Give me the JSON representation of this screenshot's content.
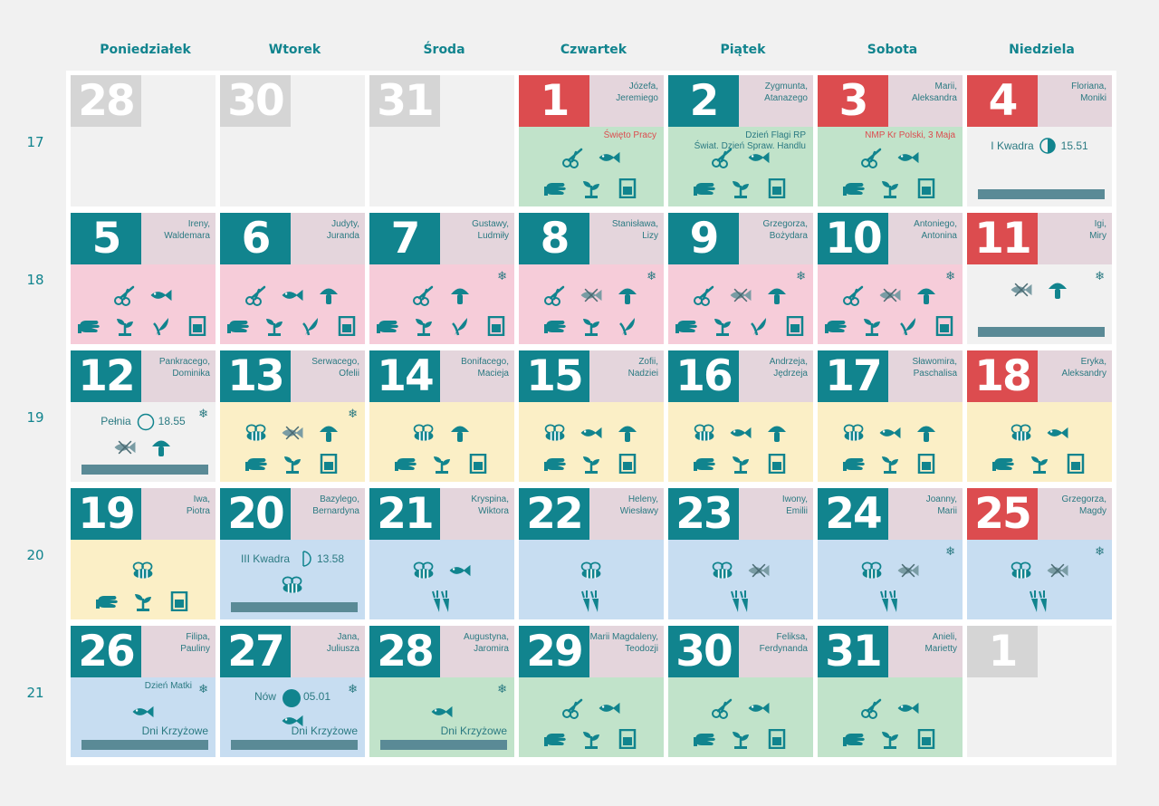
{
  "weekdays": [
    "Poniedziałek",
    "Wtorek",
    "Środa",
    "Czwartek",
    "Piątek",
    "Sobota",
    "Niedziela"
  ],
  "weeks": [
    "17",
    "18",
    "19",
    "20",
    "21"
  ],
  "colors": {
    "teal": "#11848e",
    "red": "#dc4c4f",
    "grey": "#d5d5d5",
    "green": "#c1e3ca",
    "pink": "#f6ccd9",
    "yellow": "#fbefc6",
    "blue": "#c7ddf1"
  },
  "cells": [
    {
      "day": "28",
      "kind": "oth",
      "empty": true
    },
    {
      "day": "30",
      "kind": "oth",
      "empty": true
    },
    {
      "day": "31",
      "kind": "oth",
      "empty": true
    },
    {
      "day": "1",
      "kind": "hol",
      "n1": "Józefa,",
      "n2": "Jeremiego",
      "bg": "green",
      "event": "Święto Pracy",
      "event_red": true,
      "r1": [
        "scissors",
        "fish"
      ],
      "r2": [
        "glove",
        "sprout",
        "jar"
      ]
    },
    {
      "day": "2",
      "kind": "std",
      "n1": "Zygmunta,",
      "n2": "Atanazego",
      "bg": "green",
      "event": "Dzień Flagi RP",
      "event2": "Świat. Dzień Spraw. Handlu",
      "r1": [
        "scissors",
        "fish"
      ],
      "r2": [
        "glove",
        "sprout",
        "jar"
      ]
    },
    {
      "day": "3",
      "kind": "hol",
      "n1": "Marii,",
      "n2": "Aleksandra",
      "bg": "green",
      "event": "NMP Kr Polski, 3 Maja",
      "event_red": true,
      "r1": [
        "scissors",
        "fish"
      ],
      "r2": [
        "glove",
        "sprout",
        "jar"
      ]
    },
    {
      "day": "4",
      "kind": "hol",
      "n1": "Floriana,",
      "n2": "Moniki",
      "bg": "grey",
      "moon": "I Kwadra",
      "moon_time": "15.51",
      "moon_shape": "first",
      "bar": true
    },
    {
      "day": "5",
      "kind": "std",
      "n1": "Ireny,",
      "n2": "Waldemara",
      "bg": "pink",
      "r1": [
        "scissors",
        "fish"
      ],
      "r2": [
        "glove",
        "sprout",
        "leaf",
        "jar"
      ]
    },
    {
      "day": "6",
      "kind": "std",
      "n1": "Judyty,",
      "n2": "Juranda",
      "bg": "pink",
      "r1": [
        "scissors",
        "fish",
        "mushroom"
      ],
      "r2": [
        "glove",
        "sprout",
        "leaf",
        "jar"
      ]
    },
    {
      "day": "7",
      "kind": "std",
      "n1": "Gustawy,",
      "n2": "Ludmiły",
      "bg": "pink",
      "flake": "❄",
      "r1": [
        "scissors",
        "mushroom"
      ],
      "r2": [
        "glove",
        "sprout",
        "leaf",
        "jar"
      ]
    },
    {
      "day": "8",
      "kind": "std",
      "n1": "Stanisława,",
      "n2": "Lizy",
      "bg": "pink",
      "flake": "❄",
      "r1": [
        "scissors",
        "fishx",
        "mushroom"
      ],
      "r2": [
        "glove",
        "sprout",
        "leaf"
      ]
    },
    {
      "day": "9",
      "kind": "std",
      "n1": "Grzegorza,",
      "n2": "Bożydara",
      "bg": "pink",
      "flake": "❄",
      "r1": [
        "scissors",
        "fishx",
        "mushroom"
      ],
      "r2": [
        "glove",
        "sprout",
        "leaf",
        "jar"
      ]
    },
    {
      "day": "10",
      "kind": "std",
      "n1": "Antoniego,",
      "n2": "Antonina",
      "bg": "pink",
      "flake": "❄",
      "r1": [
        "scissors",
        "fishx",
        "mushroom"
      ],
      "r2": [
        "glove",
        "sprout",
        "leaf",
        "jar"
      ]
    },
    {
      "day": "11",
      "kind": "hol",
      "n1": "Igi,",
      "n2": "Miry",
      "bg": "grey",
      "flake": "❄",
      "r1": [
        "fishx",
        "mushroom"
      ],
      "bar": true
    },
    {
      "day": "12",
      "kind": "std",
      "n1": "Pankracego,",
      "n2": "Dominika",
      "bg": "grey",
      "flake": "❄",
      "moon": "Pełnia",
      "moon_time": "18.55",
      "moon_shape": "full",
      "r2": [
        "fishx",
        "mushroom"
      ],
      "bar": true
    },
    {
      "day": "13",
      "kind": "std",
      "n1": "Serwacego,",
      "n2": "Ofelii",
      "bg": "yellow",
      "flake": "❄",
      "r1": [
        "bee",
        "fishx",
        "mushroom"
      ],
      "r2": [
        "glove",
        "sprout",
        "jar"
      ]
    },
    {
      "day": "14",
      "kind": "std",
      "n1": "Bonifacego,",
      "n2": "Macieja",
      "bg": "yellow",
      "r1": [
        "bee",
        "mushroom"
      ],
      "r2": [
        "glove",
        "sprout",
        "jar"
      ]
    },
    {
      "day": "15",
      "kind": "std",
      "n1": "Zofii,",
      "n2": "Nadziei",
      "bg": "yellow",
      "r1": [
        "bee",
        "fish",
        "mushroom"
      ],
      "r2": [
        "glove",
        "sprout",
        "jar"
      ]
    },
    {
      "day": "16",
      "kind": "std",
      "n1": "Andrzeja,",
      "n2": "Jędrzeja",
      "bg": "yellow",
      "r1": [
        "bee",
        "fish",
        "mushroom"
      ],
      "r2": [
        "glove",
        "sprout",
        "jar"
      ]
    },
    {
      "day": "17",
      "kind": "std",
      "n1": "Sławomira,",
      "n2": "Paschalisa",
      "bg": "yellow",
      "r1": [
        "bee",
        "fish",
        "mushroom"
      ],
      "r2": [
        "glove",
        "sprout",
        "jar"
      ]
    },
    {
      "day": "18",
      "kind": "hol",
      "n1": "Eryka,",
      "n2": "Aleksandry",
      "bg": "yellow",
      "r1": [
        "bee",
        "fish"
      ],
      "r2": [
        "glove",
        "sprout",
        "jar"
      ]
    },
    {
      "day": "19",
      "kind": "std",
      "n1": "Iwa,",
      "n2": "Piotra",
      "bg": "yellow",
      "r1": [
        "bee"
      ],
      "r2": [
        "glove",
        "sprout",
        "jar"
      ]
    },
    {
      "day": "20",
      "kind": "std",
      "n1": "Bazylego,",
      "n2": "Bernardyna",
      "bg": "blue",
      "moon": "III Kwadra",
      "moon_time": "13.58",
      "moon_shape": "last",
      "r2": [
        "bee"
      ],
      "bar": true
    },
    {
      "day": "21",
      "kind": "std",
      "n1": "Kryspina,",
      "n2": "Wiktora",
      "bg": "blue",
      "r1": [
        "bee",
        "fish"
      ],
      "r2": [
        "carrot"
      ]
    },
    {
      "day": "22",
      "kind": "std",
      "n1": "Heleny,",
      "n2": "Wiesławy",
      "bg": "blue",
      "r1": [
        "bee"
      ],
      "r2": [
        "carrot"
      ]
    },
    {
      "day": "23",
      "kind": "std",
      "n1": "Iwony,",
      "n2": "Emilii",
      "bg": "blue",
      "r1": [
        "bee",
        "fishx"
      ],
      "r2": [
        "carrot"
      ]
    },
    {
      "day": "24",
      "kind": "std",
      "n1": "Joanny,",
      "n2": "Marii",
      "bg": "blue",
      "flake": "❄",
      "r1": [
        "bee",
        "fishx"
      ],
      "r2": [
        "carrot"
      ]
    },
    {
      "day": "25",
      "kind": "hol",
      "n1": "Grzegorza,",
      "n2": "Magdy",
      "bg": "blue",
      "flake": "❄",
      "r1": [
        "bee",
        "fishx"
      ],
      "r2": [
        "carrot"
      ]
    },
    {
      "day": "26",
      "kind": "std",
      "n1": "Filipa,",
      "n2": "Pauliny",
      "bg": "blue",
      "flake": "❄",
      "event": "Dzień Matki",
      "r1b": [
        "fish"
      ],
      "days": "Dni Krzyżowe",
      "bar": true
    },
    {
      "day": "27",
      "kind": "std",
      "n1": "Jana,",
      "n2": "Juliusza",
      "bg": "blue",
      "flake": "❄",
      "moon": "Nów",
      "moon_time": "05.01",
      "moon_shape": "new",
      "r1b": [
        "fish"
      ],
      "days": "Dni Krzyżowe",
      "bar": true
    },
    {
      "day": "28",
      "kind": "std",
      "n1": "Augustyna,",
      "n2": "Jaromira",
      "bg": "green",
      "flake": "❄",
      "r1b": [
        "fish"
      ],
      "days": "Dni Krzyżowe",
      "bar": true
    },
    {
      "day": "29",
      "kind": "std",
      "n1": "Marii Magdaleny,",
      "n2": "Teodozji",
      "bg": "green",
      "r1": [
        "scissors",
        "fish"
      ],
      "r2": [
        "glove",
        "sprout",
        "jar"
      ]
    },
    {
      "day": "30",
      "kind": "std",
      "n1": "Feliksa,",
      "n2": "Ferdynanda",
      "bg": "green",
      "r1": [
        "scissors",
        "fish"
      ],
      "r2": [
        "glove",
        "sprout",
        "jar"
      ]
    },
    {
      "day": "31",
      "kind": "std",
      "n1": "Anieli,",
      "n2": "Marietty",
      "bg": "green",
      "r1": [
        "scissors",
        "fish"
      ],
      "r2": [
        "glove",
        "sprout",
        "jar"
      ]
    },
    {
      "day": "1",
      "kind": "oth",
      "empty": true
    }
  ]
}
